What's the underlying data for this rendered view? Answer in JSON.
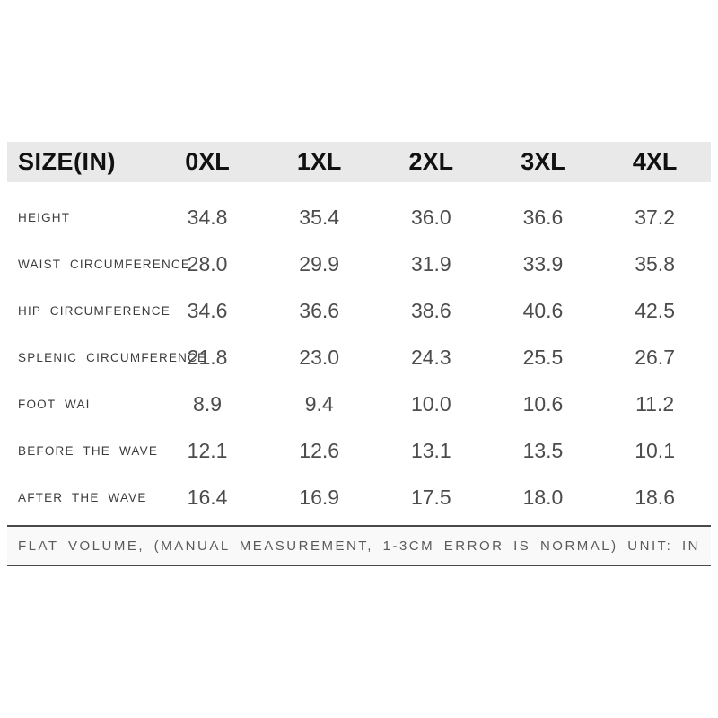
{
  "chart_data": {
    "type": "table",
    "title": "SIZE(IN)",
    "unit": "IN",
    "columns": [
      "SIZE(IN)",
      "0XL",
      "1XL",
      "2XL",
      "3XL",
      "4XL"
    ],
    "rows": [
      {
        "label": "HEIGHT",
        "values": [
          "34.8",
          "35.4",
          "36.0",
          "36.6",
          "37.2"
        ]
      },
      {
        "label": "WAIST CIRCUMFERENCE",
        "values": [
          "28.0",
          "29.9",
          "31.9",
          "33.9",
          "35.8"
        ]
      },
      {
        "label": "HIP CIRCUMFERENCE",
        "values": [
          "34.6",
          "36.6",
          "38.6",
          "40.6",
          "42.5"
        ]
      },
      {
        "label": "SPLENIC CIRCUMFERENCE",
        "values": [
          "21.8",
          "23.0",
          "24.3",
          "25.5",
          "26.7"
        ]
      },
      {
        "label": "FOOT WAI",
        "values": [
          "8.9",
          "9.4",
          "10.0",
          "10.6",
          "11.2"
        ]
      },
      {
        "label": "BEFORE THE WAVE",
        "values": [
          "12.1",
          "12.6",
          "13.1",
          "13.5",
          "10.1"
        ]
      },
      {
        "label": "AFTER THE WAVE",
        "values": [
          "16.4",
          "16.9",
          "17.5",
          "18.0",
          "18.6"
        ]
      }
    ],
    "footnote": "FLAT VOLUME, (MANUAL MEASUREMENT, 1-3CM ERROR IS NORMAL) UNIT: IN",
    "layout": {
      "grid": false,
      "legend": "none"
    }
  },
  "colors": {
    "header_bg": "#e9e9e9",
    "footer_bg": "#f9f9f9",
    "rule": "#4a4a4a",
    "header_text": "#111111",
    "label_text": "#3c3c3c",
    "value_text": "#4c4c4c",
    "footnote_text": "#5a5a5a",
    "page_bg": "#ffffff"
  }
}
